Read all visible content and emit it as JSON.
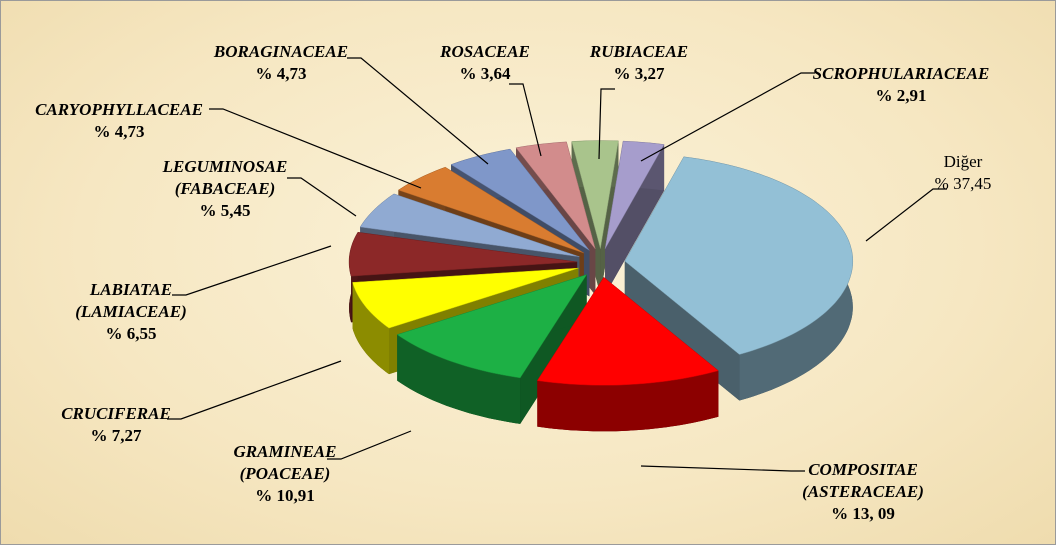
{
  "chart_data": {
    "type": "pie",
    "categories": [
      "Diğer",
      "COMPOSITAE\n(ASTERACEAE)",
      "GRAMINEAE\n(POACEAE)",
      "CRUCIFERAE",
      "LABIATAE\n(LAMIACEAE)",
      "LEGUMINOSAE\n(FABACEAE)",
      "CARYOPHYLLACEAE",
      "BORAGINACEAE",
      "ROSACEAE",
      "RUBIACEAE",
      "SCROPHULARIACEAE"
    ],
    "values": [
      37.45,
      13.09,
      10.91,
      7.27,
      6.55,
      5.45,
      4.73,
      4.73,
      3.64,
      3.27,
      2.91
    ],
    "value_labels": [
      "% 37,45",
      "% 13, 09",
      "% 10,91",
      "% 7,27",
      "% 6,55",
      "% 5,45",
      "% 4,73",
      "% 4,73",
      "% 3,64",
      "% 3,27",
      "% 2,91"
    ],
    "colors": [
      "#93c0d6",
      "#ff0000",
      "#1db045",
      "#ffff00",
      "#8c2828",
      "#90aad2",
      "#d97c30",
      "#7f97c9",
      "#d28c8c",
      "#a9c48c",
      "#a69dcc"
    ]
  }
}
